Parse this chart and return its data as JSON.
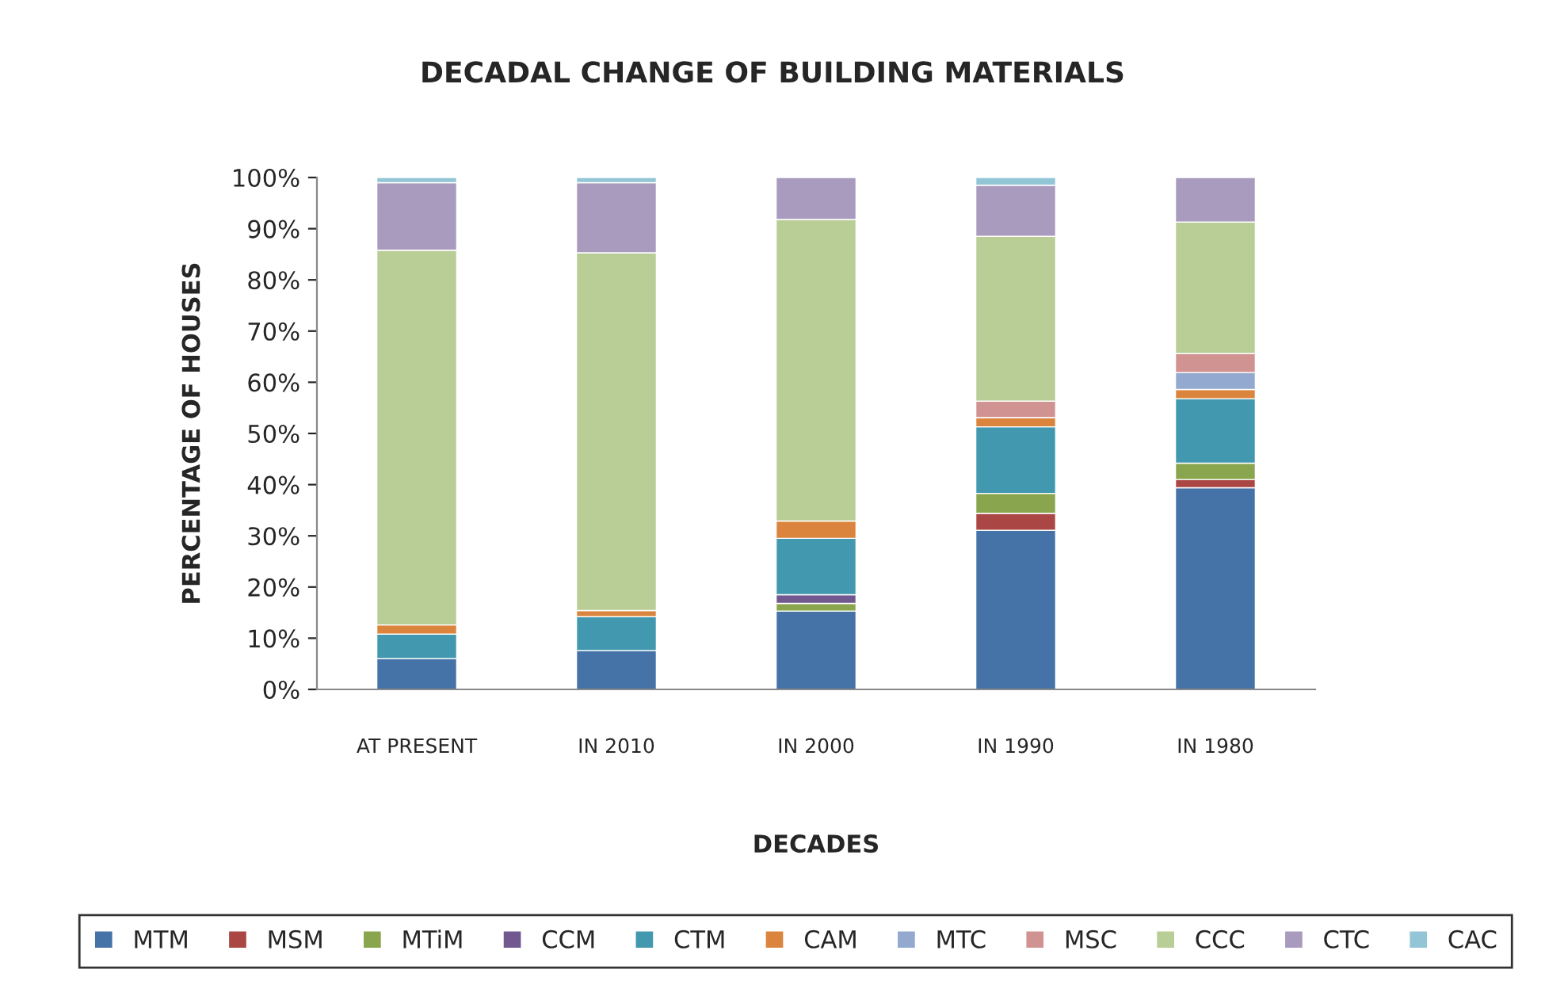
{
  "chart_data": {
    "type": "bar",
    "stacked": true,
    "title": "DECADAL CHANGE OF BUILDING MATERIALS",
    "xlabel": "DECADES",
    "ylabel": "PERCENTAGE OF HOUSES",
    "categories": [
      "AT PRESENT",
      "IN 2010",
      "IN 2000",
      "IN 1990",
      "IN 1980"
    ],
    "series": [
      {
        "name": "MTM",
        "color": "#4572a7",
        "values": [
          6.0,
          7.6,
          15.3,
          31.1,
          39.4
        ]
      },
      {
        "name": "MSM",
        "color": "#aa4643",
        "values": [
          null,
          null,
          null,
          3.3,
          1.6
        ]
      },
      {
        "name": "MTiM",
        "color": "#89a54e",
        "values": [
          null,
          null,
          1.5,
          3.9,
          3.2
        ]
      },
      {
        "name": "CCM",
        "color": "#71588f",
        "values": [
          null,
          null,
          1.7,
          null,
          null
        ]
      },
      {
        "name": "CTM",
        "color": "#4198af",
        "values": [
          4.8,
          6.6,
          11.0,
          13.0,
          12.6
        ]
      },
      {
        "name": "CAM",
        "color": "#db843d",
        "values": [
          1.8,
          1.2,
          3.4,
          1.8,
          1.8
        ]
      },
      {
        "name": "MTC",
        "color": "#93a9cf",
        "values": [
          null,
          null,
          null,
          null,
          3.3
        ]
      },
      {
        "name": "MSC",
        "color": "#d19392",
        "values": [
          null,
          null,
          null,
          3.2,
          3.7
        ]
      },
      {
        "name": "CCC",
        "color": "#b9cd96",
        "values": [
          73.2,
          69.9,
          58.9,
          32.2,
          25.7
        ]
      },
      {
        "name": "CTC",
        "color": "#a99bbd",
        "values": [
          13.2,
          13.7,
          8.2,
          10.0,
          8.7
        ]
      },
      {
        "name": "CAC",
        "color": "#92c5d6",
        "values": [
          1.0,
          1.0,
          null,
          1.5,
          null
        ]
      }
    ],
    "ylim": [
      0,
      100
    ],
    "yticks": [
      {
        "value": 0,
        "label": "0%"
      },
      {
        "value": 10,
        "label": "10%"
      },
      {
        "value": 20,
        "label": "20%"
      },
      {
        "value": 30,
        "label": "30%"
      },
      {
        "value": 40,
        "label": "40%"
      },
      {
        "value": 50,
        "label": "50%"
      },
      {
        "value": 60,
        "label": "60%"
      },
      {
        "value": 70,
        "label": "70%"
      },
      {
        "value": 80,
        "label": "80%"
      },
      {
        "value": 90,
        "label": "90%"
      },
      {
        "value": 100,
        "label": "100%"
      }
    ],
    "grid": false,
    "legend": "bottom"
  }
}
